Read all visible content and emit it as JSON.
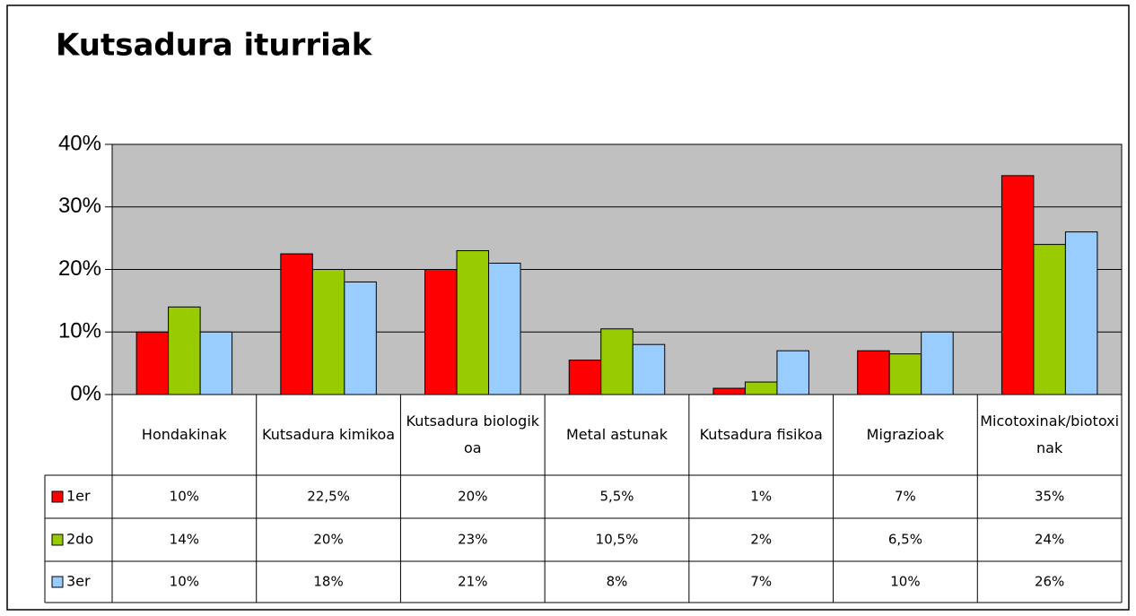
{
  "chart_data": {
    "type": "bar",
    "title": "Kutsadura iturriak",
    "categories": [
      "Hondakinak",
      "Kutsadura kimikoa",
      "Kutsadura biologikoa",
      "Metal astunak",
      "Kutsadura fisikoa",
      "Migrazioak",
      "Micotoxinak/biotoxinak"
    ],
    "series": [
      {
        "name": "1er",
        "color": "#ff0000",
        "values": [
          10,
          22.5,
          20,
          5.5,
          1,
          7,
          35
        ],
        "value_labels": [
          "10%",
          "22,5%",
          "20%",
          "5,5%",
          "1%",
          "7%",
          "35%"
        ]
      },
      {
        "name": "2do",
        "color": "#99cc00",
        "values": [
          14,
          20,
          23,
          10.5,
          2,
          6.5,
          24
        ],
        "value_labels": [
          "14%",
          "20%",
          "23%",
          "10,5%",
          "2%",
          "6,5%",
          "24%"
        ]
      },
      {
        "name": "3er",
        "color": "#99ccff",
        "values": [
          10,
          18,
          21,
          8,
          7,
          10,
          26
        ],
        "value_labels": [
          "10%",
          "18%",
          "21%",
          "8%",
          "7%",
          "10%",
          "26%"
        ]
      }
    ],
    "ylim": [
      0,
      40
    ],
    "yticks": [
      {
        "value": 0,
        "label": "0%"
      },
      {
        "value": 10,
        "label": "10%"
      },
      {
        "value": 20,
        "label": "20%"
      },
      {
        "value": 30,
        "label": "30%"
      },
      {
        "value": 40,
        "label": "40%"
      }
    ],
    "grid": true,
    "plot_background": "#c0c0c0"
  }
}
